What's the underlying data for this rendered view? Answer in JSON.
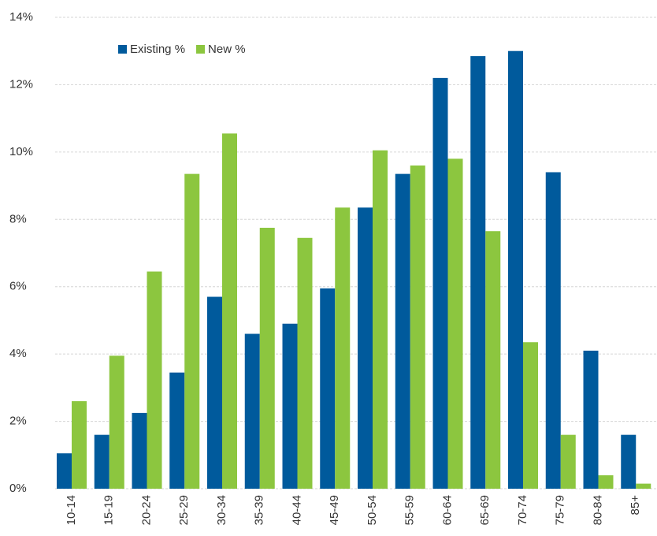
{
  "chart_data": {
    "type": "bar",
    "categories": [
      "10-14",
      "15-19",
      "20-24",
      "25-29",
      "30-34",
      "35-39",
      "40-44",
      "45-49",
      "50-54",
      "55-59",
      "60-64",
      "65-69",
      "70-74",
      "75-79",
      "80-84",
      "85+"
    ],
    "series": [
      {
        "name": "Existing %",
        "color": "#005a9c",
        "values": [
          1.05,
          1.6,
          2.25,
          3.45,
          5.7,
          4.6,
          4.9,
          5.95,
          8.35,
          9.35,
          12.2,
          12.85,
          13.0,
          9.4,
          4.1,
          1.6
        ]
      },
      {
        "name": "New %",
        "color": "#8cc63f",
        "values": [
          2.6,
          3.95,
          6.45,
          9.35,
          10.55,
          7.75,
          7.45,
          8.35,
          10.05,
          9.6,
          9.8,
          7.65,
          4.35,
          1.6,
          0.4,
          0.15
        ]
      }
    ],
    "ylim": [
      0,
      14
    ],
    "yticks": [
      {
        "value": 0,
        "label": "0%"
      },
      {
        "value": 2,
        "label": "2%"
      },
      {
        "value": 4,
        "label": "4%"
      },
      {
        "value": 6,
        "label": "6%"
      },
      {
        "value": 8,
        "label": "8%"
      },
      {
        "value": 10,
        "label": "10%"
      },
      {
        "value": 12,
        "label": "12%"
      },
      {
        "value": 14,
        "label": "14%"
      }
    ],
    "grid": true,
    "legend": "top-left"
  }
}
